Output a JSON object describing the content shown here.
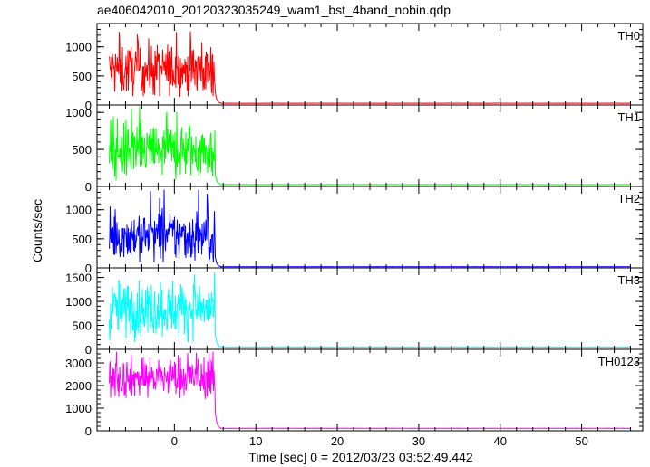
{
  "chart_data": {
    "type": "line",
    "title": "ae406042010_20120323035249_wam1_bst_4band_nobin.qdp",
    "xlabel": "Time [sec] 0 = 2012/03/23 03:52:49.442",
    "ylabel": "Counts/sec",
    "xlim": [
      -9.5,
      57.5
    ],
    "xticks": [
      0,
      10,
      20,
      30,
      40,
      50
    ],
    "xtick_labels": [
      "0",
      "10",
      "20",
      "30",
      "40",
      "50"
    ],
    "x_data_range": [
      -8,
      56
    ],
    "burst_end": 5,
    "grid": false,
    "legend": "none",
    "panels": [
      {
        "name": "TH0",
        "color": "#ff0000",
        "ylim": [
          0,
          1400
        ],
        "yticks": [
          0,
          500,
          1000
        ],
        "ytick_labels": [
          "0",
          "500",
          "1000"
        ],
        "burst_level": 600,
        "burst_noise": 230,
        "burst_max": 1400,
        "burst_min": 150,
        "background": 30
      },
      {
        "name": "TH1",
        "color": "#00ff00",
        "ylim": [
          0,
          1100
        ],
        "yticks": [
          0,
          500,
          1000
        ],
        "ytick_labels": [
          "0",
          "500",
          "1000"
        ],
        "burst_level": 480,
        "burst_noise": 200,
        "burst_max": 1100,
        "burst_min": 40,
        "background": 25
      },
      {
        "name": "TH2",
        "color": "#0000ff",
        "ylim": [
          0,
          1400
        ],
        "yticks": [
          0,
          500,
          1000
        ],
        "ytick_labels": [
          "0",
          "500",
          "1000"
        ],
        "burst_level": 550,
        "burst_noise": 230,
        "burst_max": 1350,
        "burst_min": 100,
        "background": 20
      },
      {
        "name": "TH3",
        "color": "#00ffff",
        "ylim": [
          0,
          1700
        ],
        "yticks": [
          0,
          500,
          1000,
          1500
        ],
        "ytick_labels": [
          "0",
          "500",
          "1000",
          "1500"
        ],
        "burst_level": 850,
        "burst_noise": 300,
        "burst_max": 1600,
        "burst_min": 150,
        "background": 50
      },
      {
        "name": "TH0123",
        "color": "#ff00ff",
        "ylim": [
          0,
          3600
        ],
        "yticks": [
          0,
          1000,
          2000,
          3000
        ],
        "ytick_labels": [
          "0",
          "1000",
          "2000",
          "3000"
        ],
        "burst_level": 2350,
        "burst_noise": 450,
        "burst_max": 3500,
        "burst_min": 1000,
        "background": 110
      }
    ]
  }
}
